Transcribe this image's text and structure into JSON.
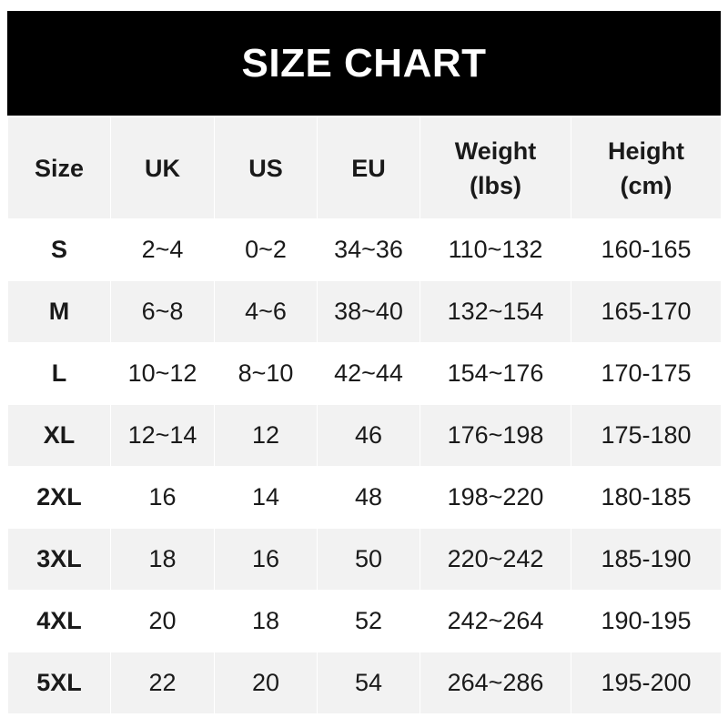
{
  "title": "SIZE CHART",
  "colors": {
    "header_bg": "#000000",
    "header_text": "#ffffff",
    "stripe": "#f2f2f2"
  },
  "columns": [
    {
      "line1": "Size",
      "line2": ""
    },
    {
      "line1": "UK",
      "line2": ""
    },
    {
      "line1": "US",
      "line2": ""
    },
    {
      "line1": "EU",
      "line2": ""
    },
    {
      "line1": "Weight",
      "line2": "(lbs)"
    },
    {
      "line1": "Height",
      "line2": "(cm)"
    }
  ],
  "rows": [
    [
      "S",
      "2~4",
      "0~2",
      "34~36",
      "110~132",
      "160-165"
    ],
    [
      "M",
      "6~8",
      "4~6",
      "38~40",
      "132~154",
      "165-170"
    ],
    [
      "L",
      "10~12",
      "8~10",
      "42~44",
      "154~176",
      "170-175"
    ],
    [
      "XL",
      "12~14",
      "12",
      "46",
      "176~198",
      "175-180"
    ],
    [
      "2XL",
      "16",
      "14",
      "48",
      "198~220",
      "180-185"
    ],
    [
      "3XL",
      "18",
      "16",
      "50",
      "220~242",
      "185-190"
    ],
    [
      "4XL",
      "20",
      "18",
      "52",
      "242~264",
      "190-195"
    ],
    [
      "5XL",
      "22",
      "20",
      "54",
      "264~286",
      "195-200"
    ]
  ]
}
